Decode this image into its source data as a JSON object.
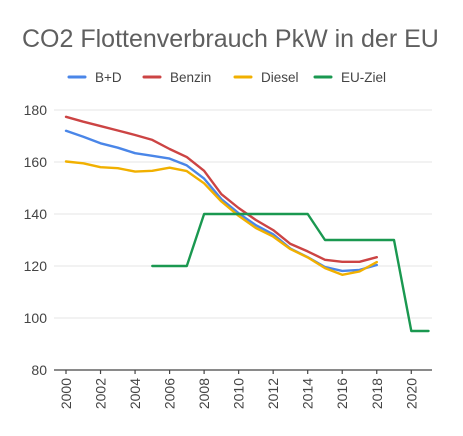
{
  "chart_data": {
    "type": "line",
    "title": "CO2 Flottenverbrauch PkW in der EU",
    "xlabel": "",
    "ylabel": "",
    "x_ticks": [
      2000,
      2002,
      2004,
      2006,
      2008,
      2010,
      2012,
      2014,
      2016,
      2018,
      2020
    ],
    "xlim": [
      2000,
      2021.2
    ],
    "ylim": [
      80,
      180
    ],
    "y_ticks": [
      80,
      100,
      120,
      140,
      160,
      180
    ],
    "grid": true,
    "legend_position": "top",
    "series": [
      {
        "name": "B+D",
        "color": "#4a86e8",
        "points": [
          [
            2000,
            172
          ],
          [
            2001,
            169.7
          ],
          [
            2002,
            167.2
          ],
          [
            2003,
            165.5
          ],
          [
            2004,
            163.4
          ],
          [
            2005,
            162.4
          ],
          [
            2006,
            161.3
          ],
          [
            2007,
            158.7
          ],
          [
            2008,
            153.6
          ],
          [
            2009,
            145.7
          ],
          [
            2010,
            140.3
          ],
          [
            2011,
            135.7
          ],
          [
            2012,
            132.2
          ],
          [
            2013,
            126.7
          ],
          [
            2014,
            123.4
          ],
          [
            2015,
            119.6
          ],
          [
            2016,
            118.1
          ],
          [
            2017,
            118.5
          ],
          [
            2018,
            120.4
          ]
        ]
      },
      {
        "name": "Benzin",
        "color": "#cc4444",
        "points": [
          [
            2000,
            177.4
          ],
          [
            2001,
            175.5
          ],
          [
            2002,
            173.8
          ],
          [
            2003,
            172.1
          ],
          [
            2004,
            170.4
          ],
          [
            2005,
            168.5
          ],
          [
            2006,
            165
          ],
          [
            2007,
            161.9
          ],
          [
            2008,
            156.6
          ],
          [
            2009,
            147.6
          ],
          [
            2010,
            142.3
          ],
          [
            2011,
            137.7
          ],
          [
            2012,
            133.8
          ],
          [
            2013,
            128.5
          ],
          [
            2014,
            125.6
          ],
          [
            2015,
            122.4
          ],
          [
            2016,
            121.6
          ],
          [
            2017,
            121.6
          ],
          [
            2018,
            123.4
          ]
        ]
      },
      {
        "name": "Diesel",
        "color": "#f1b000",
        "points": [
          [
            2000,
            160.2
          ],
          [
            2001,
            159.5
          ],
          [
            2002,
            158
          ],
          [
            2003,
            157.6
          ],
          [
            2004,
            156.3
          ],
          [
            2005,
            156.6
          ],
          [
            2006,
            157.8
          ],
          [
            2007,
            156.5
          ],
          [
            2008,
            151.8
          ],
          [
            2009,
            144.8
          ],
          [
            2010,
            139.3
          ],
          [
            2011,
            134.6
          ],
          [
            2012,
            131.3
          ],
          [
            2013,
            126.5
          ],
          [
            2014,
            123.3
          ],
          [
            2015,
            119.2
          ],
          [
            2016,
            116.6
          ],
          [
            2017,
            117.9
          ],
          [
            2018,
            121.5
          ]
        ]
      },
      {
        "name": "EU-Ziel",
        "color": "#1a9850",
        "points": [
          [
            2005,
            120
          ],
          [
            2007,
            120
          ],
          [
            2008,
            140
          ],
          [
            2014,
            140
          ],
          [
            2015,
            130
          ],
          [
            2019,
            130
          ],
          [
            2020,
            95
          ],
          [
            2021,
            95
          ]
        ]
      }
    ]
  }
}
